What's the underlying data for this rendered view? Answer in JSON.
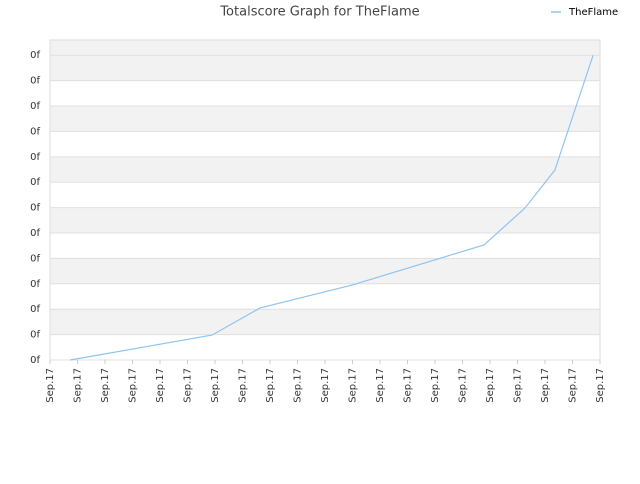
{
  "chart_data": {
    "type": "line",
    "title": "Totalscore Graph for TheFlame",
    "x": [
      0.73,
      5.89,
      7.64,
      10.98,
      15.78,
      17.27,
      18.36,
      19.75
    ],
    "series": [
      {
        "name": "TheFlame",
        "color": "#90c4f0",
        "values": [
          0,
          0.98,
          2.05,
          2.95,
          4.53,
          5.98,
          7.48,
          12.0
        ]
      }
    ],
    "xlim": [
      0,
      20
    ],
    "xticks": [
      {
        "value": 0,
        "label": "Sep.17"
      },
      {
        "value": 1,
        "label": "Sep.17"
      },
      {
        "value": 2,
        "label": "Sep.17"
      },
      {
        "value": 3,
        "label": "Sep.17"
      },
      {
        "value": 4,
        "label": "Sep.17"
      },
      {
        "value": 5,
        "label": "Sep.17"
      },
      {
        "value": 6,
        "label": "Sep.17"
      },
      {
        "value": 7,
        "label": "Sep.17"
      },
      {
        "value": 8,
        "label": "Sep.17"
      },
      {
        "value": 9,
        "label": "Sep.17"
      },
      {
        "value": 10,
        "label": "Sep.17"
      },
      {
        "value": 11,
        "label": "Sep.17"
      },
      {
        "value": 12,
        "label": "Sep.17"
      },
      {
        "value": 13,
        "label": "Sep.17"
      },
      {
        "value": 14,
        "label": "Sep.17"
      },
      {
        "value": 15,
        "label": "Sep.17"
      },
      {
        "value": 16,
        "label": "Sep.17"
      },
      {
        "value": 17,
        "label": "Sep.17"
      },
      {
        "value": 18,
        "label": "Sep.17"
      },
      {
        "value": 19,
        "label": "Sep.17"
      },
      {
        "value": 20,
        "label": "Sep.17"
      }
    ],
    "ylim": [
      0,
      12.6
    ],
    "yticks": [
      {
        "value": 0,
        "label": "0f"
      },
      {
        "value": 1,
        "label": "0f"
      },
      {
        "value": 2,
        "label": "0f"
      },
      {
        "value": 3,
        "label": "0f"
      },
      {
        "value": 4,
        "label": "0f"
      },
      {
        "value": 5,
        "label": "0f"
      },
      {
        "value": 6,
        "label": "0f"
      },
      {
        "value": 7,
        "label": "0f"
      },
      {
        "value": 8,
        "label": "0f"
      },
      {
        "value": 9,
        "label": "0f"
      },
      {
        "value": 10,
        "label": "0f"
      },
      {
        "value": 11,
        "label": "0f"
      },
      {
        "value": 12,
        "label": "0f"
      }
    ],
    "grid": true,
    "legend": "top-right"
  }
}
